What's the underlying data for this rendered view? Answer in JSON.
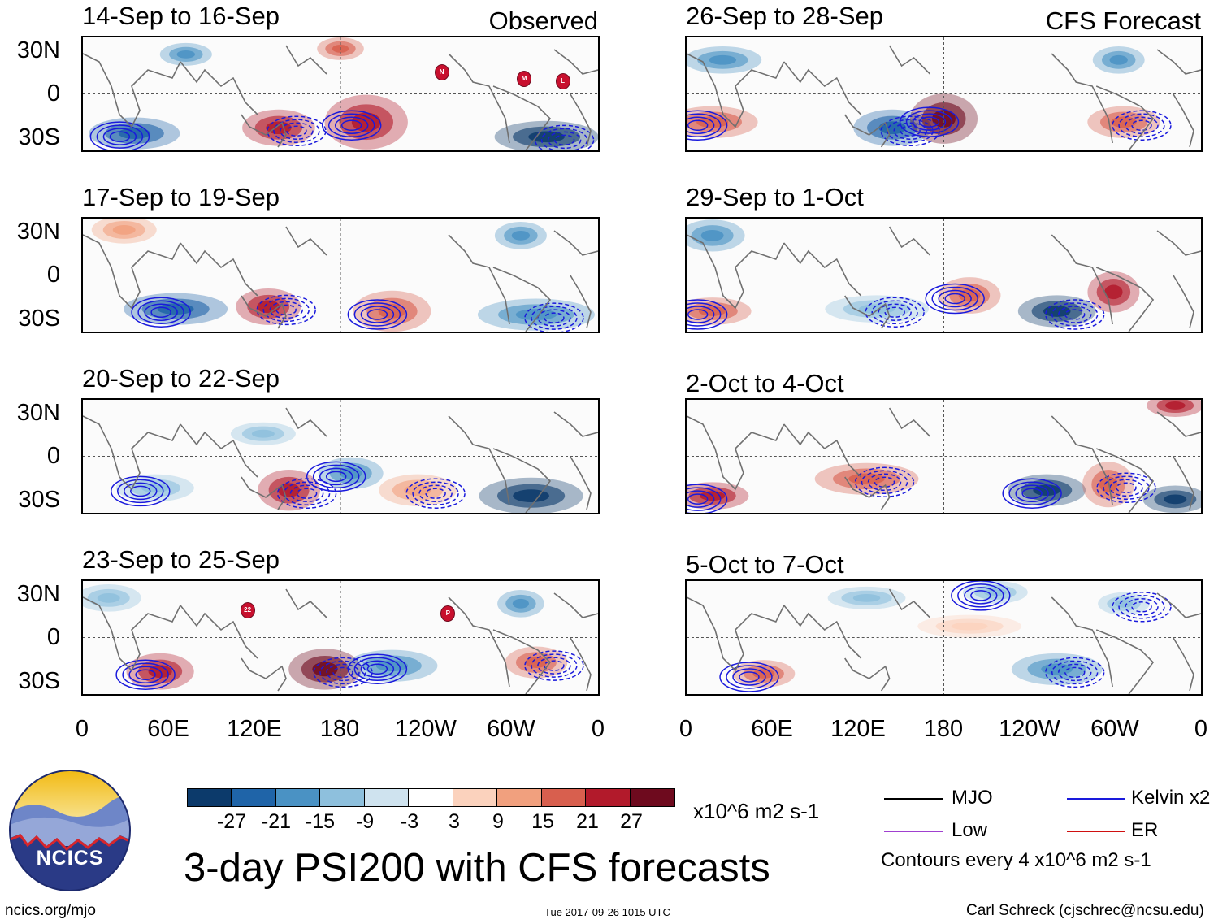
{
  "panels": {
    "observed_label": "Observed",
    "forecast_label": "CFS Forecast",
    "left": [
      {
        "title": "14-Sep to 16-Sep"
      },
      {
        "title": "17-Sep to 19-Sep"
      },
      {
        "title": "20-Sep to 22-Sep"
      },
      {
        "title": "23-Sep to 25-Sep"
      }
    ],
    "right": [
      {
        "title": "26-Sep to 28-Sep"
      },
      {
        "title": "29-Sep to 1-Oct"
      },
      {
        "title": "2-Oct to 4-Oct"
      },
      {
        "title": "5-Oct to 7-Oct"
      }
    ]
  },
  "axes": {
    "lat_labels": [
      "30N",
      "0",
      "30S"
    ],
    "lon_labels": [
      "0",
      "60E",
      "120E",
      "180",
      "120W",
      "60W",
      "0"
    ]
  },
  "storm_markers": {
    "panel1": [
      "N",
      "M",
      "L"
    ],
    "panel4": [
      "22",
      "P"
    ]
  },
  "colorbar": {
    "labels": [
      "-27",
      "-21",
      "-15",
      "-9",
      "-3",
      "3",
      "9",
      "15",
      "21",
      "27"
    ],
    "units": "x10^6 m2 s-1",
    "colors": [
      "#0c3a6b",
      "#1f64a8",
      "#4a92c4",
      "#8ec0dd",
      "#cfe3ef",
      "#ffffff",
      "#fbd2bd",
      "#f1a07e",
      "#d85f4e",
      "#b21a2b",
      "#6e0a1e"
    ]
  },
  "title": "3-day PSI200 with CFS forecasts",
  "legend": {
    "items": [
      {
        "label": "MJO",
        "color": "#000000"
      },
      {
        "label": "Kelvin x2",
        "color": "#1a1adc"
      },
      {
        "label": "Low",
        "color": "#a040d0"
      },
      {
        "label": "ER",
        "color": "#d01010"
      }
    ],
    "note": "Contours every 4 x10^6 m2 s-1"
  },
  "logo": {
    "text": "NCICS"
  },
  "footer": {
    "url": "ncics.org/mjo",
    "timestamp": "Tue 2017-09-26 1015 UTC",
    "credit": "Carl Schreck (cjschrec@ncsu.edu)"
  }
}
